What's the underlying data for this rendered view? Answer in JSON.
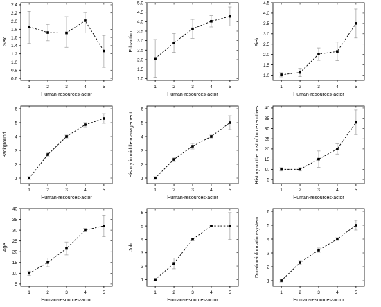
{
  "chart_data": [
    {
      "type": "line",
      "xlabel": "Human-resources-actor",
      "ylabel": "Sex",
      "x": [
        1,
        2,
        3,
        4,
        5
      ],
      "ylim": [
        0.55,
        2.45
      ],
      "yticks": [
        0.6,
        0.8,
        1.0,
        1.2,
        1.4,
        1.6,
        1.8,
        2.0,
        2.2,
        2.4
      ],
      "series": [
        {
          "values": [
            1.86,
            1.72,
            1.71,
            2.01,
            1.27
          ],
          "err_low": [
            0.4,
            0.2,
            0.35,
            0.3,
            0.4
          ],
          "err_high": [
            0.38,
            0.2,
            0.4,
            0.2,
            0.38
          ]
        }
      ]
    },
    {
      "type": "line",
      "xlabel": "Human-resources-actor",
      "ylabel": "Eduaction",
      "x": [
        1,
        2,
        3,
        4,
        5
      ],
      "ylim": [
        0.9,
        5.0
      ],
      "yticks": [
        1.0,
        1.5,
        2.0,
        2.5,
        3.0,
        3.5,
        4.0,
        4.5,
        5.0
      ],
      "series": [
        {
          "values": [
            2.06,
            2.88,
            3.62,
            4.02,
            4.28
          ],
          "err_low": [
            1.0,
            0.5,
            0.5,
            0.3,
            0.5
          ],
          "err_high": [
            1.0,
            0.5,
            0.5,
            0.3,
            0.5
          ]
        }
      ]
    },
    {
      "type": "line",
      "xlabel": "Human-resources-actor",
      "ylabel": "Field",
      "x": [
        1,
        2,
        3,
        4,
        5
      ],
      "ylim": [
        0.75,
        4.5
      ],
      "yticks": [
        1.0,
        1.5,
        2.0,
        2.5,
        3.0,
        3.5,
        4.0,
        4.5
      ],
      "series": [
        {
          "values": [
            1.02,
            1.13,
            2.02,
            2.15,
            3.5
          ],
          "err_low": [
            0.1,
            0.2,
            0.3,
            0.45,
            0.7
          ],
          "err_high": [
            0.1,
            0.2,
            0.3,
            0.45,
            0.7
          ]
        }
      ]
    },
    {
      "type": "line",
      "xlabel": "Human-resources-actor",
      "ylabel": "Background",
      "x": [
        1,
        2,
        3,
        4,
        5
      ],
      "ylim": [
        0.6,
        6.2
      ],
      "yticks": [
        1,
        2,
        3,
        4,
        5,
        6
      ],
      "series": [
        {
          "values": [
            1.0,
            2.7,
            4.0,
            4.85,
            5.3
          ],
          "err_low": [
            0.1,
            0.15,
            0.1,
            0.15,
            0.35
          ],
          "err_high": [
            0.1,
            0.15,
            0.1,
            0.15,
            0.35
          ]
        }
      ]
    },
    {
      "type": "line",
      "xlabel": "Human-resources-actor",
      "ylabel": "History in middle management",
      "x": [
        1,
        2,
        3,
        4,
        5
      ],
      "ylim": [
        0.6,
        6.2
      ],
      "yticks": [
        1,
        2,
        3,
        4,
        5,
        6
      ],
      "series": [
        {
          "values": [
            1.0,
            2.35,
            3.3,
            4.0,
            5.0
          ],
          "err_low": [
            0.1,
            0.15,
            0.2,
            0.1,
            0.5
          ],
          "err_high": [
            0.1,
            0.15,
            0.2,
            0.1,
            0.5
          ]
        }
      ]
    },
    {
      "type": "line",
      "xlabel": "Human-resources-actor",
      "ylabel": "History on the post of top executives",
      "x": [
        1,
        2,
        3,
        4,
        5
      ],
      "ylim": [
        3,
        41
      ],
      "yticks": [
        5,
        10,
        15,
        20,
        25,
        30,
        35,
        40
      ],
      "series": [
        {
          "values": [
            10,
            10,
            15,
            20,
            33
          ],
          "err_low": [
            0.8,
            0.8,
            4.0,
            2.5,
            6.0
          ],
          "err_high": [
            0.8,
            0.8,
            4.0,
            2.5,
            6.0
          ]
        }
      ]
    },
    {
      "type": "line",
      "xlabel": "Human-resources-actor",
      "ylabel": "Age",
      "x": [
        1,
        2,
        3,
        4,
        5
      ],
      "ylim": [
        4,
        40
      ],
      "yticks": [
        5,
        10,
        15,
        20,
        25,
        30,
        35,
        40
      ],
      "series": [
        {
          "values": [
            10,
            15,
            21.5,
            30,
            32
          ],
          "err_low": [
            1.0,
            2.0,
            3.0,
            0.8,
            5.0
          ],
          "err_high": [
            1.0,
            2.0,
            3.0,
            0.8,
            5.0
          ]
        }
      ]
    },
    {
      "type": "line",
      "xlabel": "Human-resources-actor",
      "ylabel": "Job",
      "x": [
        1,
        2,
        3,
        4,
        5
      ],
      "ylim": [
        0.5,
        6.3
      ],
      "yticks": [
        1,
        2,
        3,
        4,
        5,
        6
      ],
      "series": [
        {
          "values": [
            1.0,
            2.2,
            4.0,
            5.0,
            5.0
          ],
          "err_low": [
            0.05,
            0.4,
            0.1,
            0.05,
            1.0
          ],
          "err_high": [
            0.05,
            0.4,
            0.1,
            0.05,
            1.0
          ]
        }
      ]
    },
    {
      "type": "line",
      "xlabel": "Human-resources-actor",
      "ylabel": "Duration-information-system",
      "x": [
        1,
        2,
        3,
        4,
        5
      ],
      "ylim": [
        0.6,
        6.2
      ],
      "yticks": [
        1,
        2,
        3,
        4,
        5,
        6
      ],
      "series": [
        {
          "values": [
            1.0,
            2.3,
            3.2,
            4.0,
            5.0
          ],
          "err_low": [
            0.1,
            0.15,
            0.15,
            0.1,
            0.35
          ],
          "err_high": [
            0.1,
            0.15,
            0.15,
            0.1,
            0.35
          ]
        }
      ]
    }
  ]
}
